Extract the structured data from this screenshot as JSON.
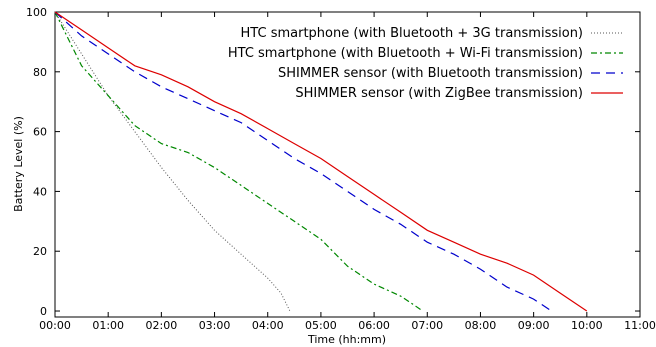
{
  "chart_data": {
    "type": "line",
    "xlabel": "Time (hh:mm)",
    "ylabel": "Battery Level (%)",
    "xlim": [
      0,
      660
    ],
    "ylim": [
      -2,
      100
    ],
    "x_ticks": [
      {
        "value": 0,
        "label": "00:00"
      },
      {
        "value": 60,
        "label": "01:00"
      },
      {
        "value": 120,
        "label": "02:00"
      },
      {
        "value": 180,
        "label": "03:00"
      },
      {
        "value": 240,
        "label": "04:00"
      },
      {
        "value": 300,
        "label": "05:00"
      },
      {
        "value": 360,
        "label": "06:00"
      },
      {
        "value": 420,
        "label": "07:00"
      },
      {
        "value": 480,
        "label": "08:00"
      },
      {
        "value": 540,
        "label": "09:00"
      },
      {
        "value": 600,
        "label": "10:00"
      },
      {
        "value": 660,
        "label": "11:00"
      }
    ],
    "y_ticks": [
      {
        "value": 0,
        "label": "0"
      },
      {
        "value": 20,
        "label": "20"
      },
      {
        "value": 40,
        "label": "40"
      },
      {
        "value": 60,
        "label": "60"
      },
      {
        "value": 80,
        "label": "80"
      },
      {
        "value": 100,
        "label": "100"
      }
    ],
    "legend_position": "top-right",
    "series": [
      {
        "name": "HTC smartphone (with Bluetooth + 3G transmission)",
        "color": "#555555",
        "dash": "dotted",
        "points": [
          [
            0,
            100
          ],
          [
            30,
            86
          ],
          [
            60,
            72
          ],
          [
            90,
            60
          ],
          [
            120,
            48
          ],
          [
            150,
            37
          ],
          [
            180,
            27
          ],
          [
            210,
            19
          ],
          [
            240,
            11
          ],
          [
            255,
            6
          ],
          [
            265,
            0
          ]
        ]
      },
      {
        "name": "HTC smartphone (with Bluetooth + Wi-Fi transmission)",
        "color": "#008800",
        "dash": "dashdot",
        "points": [
          [
            0,
            100
          ],
          [
            30,
            82
          ],
          [
            60,
            72
          ],
          [
            90,
            62
          ],
          [
            120,
            56
          ],
          [
            150,
            53
          ],
          [
            180,
            48
          ],
          [
            210,
            42
          ],
          [
            240,
            36
          ],
          [
            270,
            30
          ],
          [
            300,
            24
          ],
          [
            330,
            15
          ],
          [
            360,
            9
          ],
          [
            390,
            5
          ],
          [
            405,
            2
          ],
          [
            415,
            0
          ]
        ]
      },
      {
        "name": "SHIMMER sensor (with Bluetooth transmission)",
        "color": "#0000cc",
        "dash": "dashed",
        "points": [
          [
            0,
            100
          ],
          [
            30,
            92
          ],
          [
            60,
            86
          ],
          [
            90,
            80
          ],
          [
            120,
            75
          ],
          [
            150,
            71
          ],
          [
            180,
            67
          ],
          [
            210,
            63
          ],
          [
            240,
            57
          ],
          [
            270,
            51
          ],
          [
            300,
            46
          ],
          [
            330,
            40
          ],
          [
            360,
            34
          ],
          [
            390,
            29
          ],
          [
            420,
            23
          ],
          [
            450,
            19
          ],
          [
            480,
            14
          ],
          [
            510,
            8
          ],
          [
            540,
            4
          ],
          [
            560,
            0
          ]
        ]
      },
      {
        "name": "SHIMMER sensor (with ZigBee transmission)",
        "color": "#dd0000",
        "dash": "solid",
        "points": [
          [
            0,
            100
          ],
          [
            30,
            94
          ],
          [
            60,
            88
          ],
          [
            90,
            82
          ],
          [
            120,
            79
          ],
          [
            150,
            75
          ],
          [
            180,
            70
          ],
          [
            210,
            66
          ],
          [
            240,
            61
          ],
          [
            270,
            56
          ],
          [
            300,
            51
          ],
          [
            330,
            45
          ],
          [
            360,
            39
          ],
          [
            390,
            33
          ],
          [
            420,
            27
          ],
          [
            450,
            23
          ],
          [
            480,
            19
          ],
          [
            510,
            16
          ],
          [
            540,
            12
          ],
          [
            570,
            6
          ],
          [
            600,
            0
          ]
        ]
      }
    ]
  }
}
